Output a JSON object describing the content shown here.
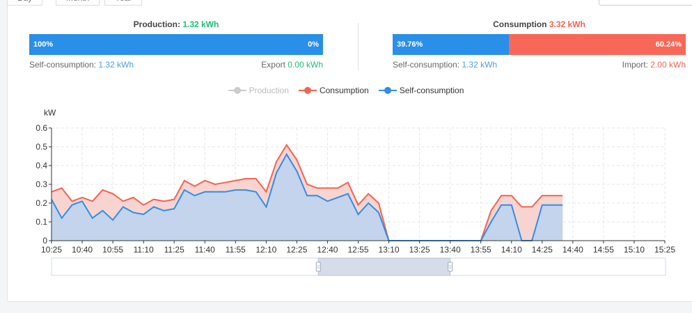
{
  "tabs": [
    "Day",
    "Month",
    "Year"
  ],
  "production": {
    "label": "Production:",
    "value": "1.32 kWh",
    "bar_left_pct": "100%",
    "bar_right_pct": "0%",
    "self_label": "Self-consumption:",
    "self_value": "1.32 kWh",
    "export_label": "Export",
    "export_value": "0.00 kWh",
    "self_fraction": 1.0
  },
  "consumption": {
    "label": "Consumption",
    "value": "3.32 kWh",
    "bar_left_pct": "39.76%",
    "bar_right_pct": "60.24%",
    "self_label": "Self-consumption:",
    "self_value": "1.32 kWh",
    "import_label": "Import:",
    "import_value": "2.00 kWh",
    "self_fraction": 0.3976
  },
  "colors": {
    "production": "#cccccc",
    "consumption": "#f4634f",
    "self_consumption": "#2f8ee6",
    "bar_blue": "#2a8fe8",
    "bar_red": "#f76858",
    "area_blue": "#c3d4ec",
    "area_red": "#f8d4d1"
  },
  "chart_data": {
    "type": "area",
    "ylabel": "kW",
    "ylim": [
      0,
      0.6
    ],
    "yticks": [
      "0",
      "0.1",
      "0.2",
      "0.3",
      "0.4",
      "0.5",
      "0.6"
    ],
    "xticks": [
      "10:25",
      "10:40",
      "10:55",
      "11:10",
      "11:25",
      "11:40",
      "11:55",
      "12:10",
      "12:25",
      "12:40",
      "12:55",
      "13:10",
      "13:25",
      "13:40",
      "13:55",
      "14:10",
      "14:25",
      "14:40",
      "14:55",
      "15:10",
      "15:25"
    ],
    "x_start": "10:25",
    "x_step_minutes": 5,
    "legend": [
      {
        "name": "Production",
        "active": false
      },
      {
        "name": "Consumption",
        "active": true
      },
      {
        "name": "Self-consumption",
        "active": true
      }
    ],
    "series": [
      {
        "name": "Consumption",
        "values": [
          0.26,
          0.28,
          0.21,
          0.23,
          0.21,
          0.27,
          0.25,
          0.21,
          0.23,
          0.19,
          0.22,
          0.21,
          0.22,
          0.32,
          0.29,
          0.32,
          0.3,
          0.31,
          0.32,
          0.33,
          0.33,
          0.26,
          0.42,
          0.51,
          0.43,
          0.3,
          0.28,
          0.28,
          0.28,
          0.31,
          0.19,
          0.25,
          0.2,
          0.0,
          0.0,
          0.0,
          0.0,
          0.0,
          0.0,
          0.0,
          0.0,
          0.0,
          0.0,
          0.16,
          0.24,
          0.24,
          0.18,
          0.18,
          0.24,
          0.24,
          0.24
        ]
      },
      {
        "name": "Self-consumption",
        "values": [
          0.22,
          0.12,
          0.19,
          0.21,
          0.12,
          0.16,
          0.11,
          0.18,
          0.15,
          0.14,
          0.18,
          0.16,
          0.17,
          0.27,
          0.24,
          0.26,
          0.26,
          0.26,
          0.27,
          0.27,
          0.26,
          0.18,
          0.36,
          0.46,
          0.37,
          0.24,
          0.24,
          0.21,
          0.23,
          0.25,
          0.14,
          0.2,
          0.15,
          0.0,
          0.0,
          0.0,
          0.0,
          0.0,
          0.0,
          0.0,
          0.0,
          0.0,
          0.0,
          0.1,
          0.19,
          0.19,
          0.0,
          0.0,
          0.19,
          0.19,
          0.19
        ]
      }
    ],
    "zoom_window": {
      "start_fraction": 0.435,
      "end_fraction": 0.65
    }
  }
}
